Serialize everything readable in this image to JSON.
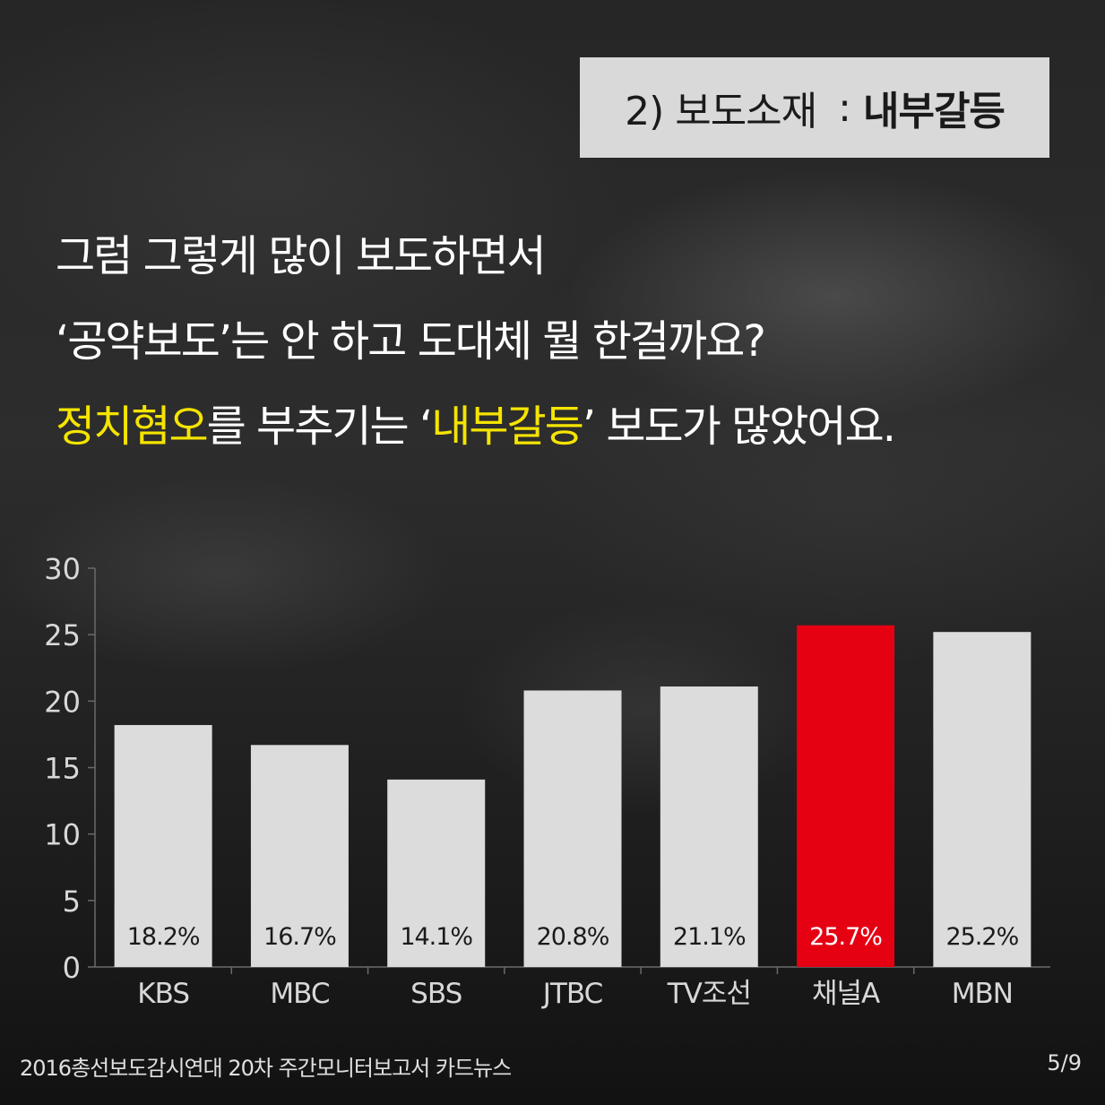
{
  "title_box": {
    "prefix": "2) 보도소재",
    "separator": ":",
    "emphasis": "내부갈등"
  },
  "headline": {
    "line1": "그럼 그렇게 많이 보도하면서",
    "line2": "‘공약보도’는 안 하고 도대체 뭘 한걸까요?",
    "line3_part1": "정치혐오",
    "line3_part2": "를 부추기는 ‘",
    "line3_part3": "내부갈등",
    "line3_part4": "’ 보도가 많았어요."
  },
  "footer": "2016총선보도감시연대 20차 주간모니터보고서 카드뉴스",
  "page_number": "5/9",
  "colors": {
    "bar": "#dcdcdc",
    "highlight": "#e50012",
    "emphasis_text": "#f5e400"
  },
  "chart_data": {
    "type": "bar",
    "categories": [
      "KBS",
      "MBC",
      "SBS",
      "JTBC",
      "TV조선",
      "채널A",
      "MBN"
    ],
    "values": [
      18.2,
      16.7,
      14.1,
      20.8,
      21.1,
      25.7,
      25.2
    ],
    "data_labels": [
      "18.2%",
      "16.7%",
      "14.1%",
      "20.8%",
      "21.1%",
      "25.7%",
      "25.2%"
    ],
    "highlight_index": 5,
    "yticks": [
      0,
      5,
      10,
      15,
      20,
      25,
      30
    ],
    "ylim": [
      0,
      30
    ],
    "grid": false,
    "legend": "none"
  }
}
